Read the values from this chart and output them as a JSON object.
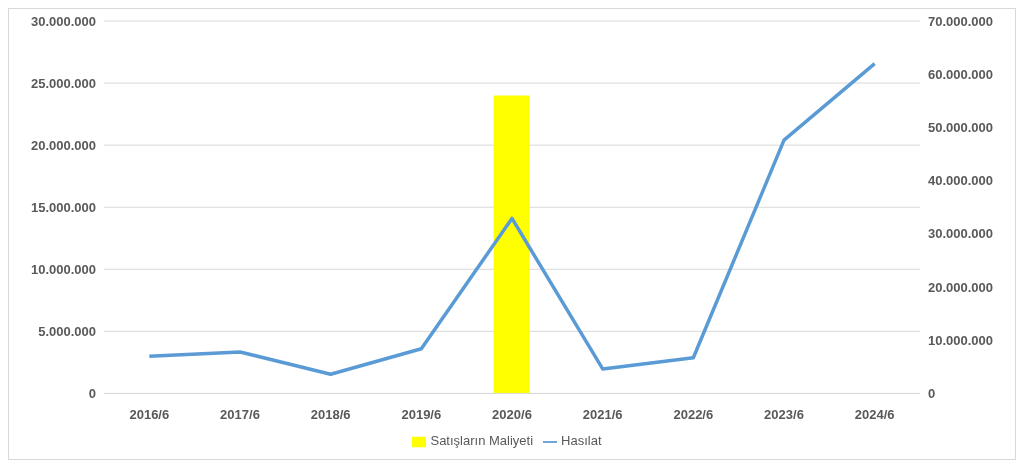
{
  "chart_data": {
    "type": "bar",
    "categories": [
      "2016/6",
      "2017/6",
      "2018/6",
      "2019/6",
      "2020/6",
      "2021/6",
      "2022/6",
      "2023/6",
      "2024/6"
    ],
    "series": [
      {
        "name": "Satışların Maliyeti",
        "color": "#ffff00",
        "values": [
          null,
          null,
          null,
          null,
          24000000,
          null,
          null,
          null,
          null
        ]
      },
      {
        "name": "Hasılat",
        "type": "line",
        "axis": "y2",
        "color": "#5b9bd5",
        "values": [
          7000000,
          7800000,
          3600000,
          8400000,
          32900000,
          4600000,
          6700000,
          47600000,
          62000000
        ]
      }
    ],
    "ylim": [
      0,
      30000000
    ],
    "yticks": [
      {
        "value": 0,
        "label": "0"
      },
      {
        "value": 5000000,
        "label": "5.000.000"
      },
      {
        "value": 10000000,
        "label": "10.000.000"
      },
      {
        "value": 15000000,
        "label": "15.000.000"
      },
      {
        "value": 20000000,
        "label": "20.000.000"
      },
      {
        "value": 25000000,
        "label": "25.000.000"
      },
      {
        "value": 30000000,
        "label": "30.000.000"
      }
    ],
    "y2lim": [
      0,
      70000000
    ],
    "y2ticks": [
      {
        "value": 0,
        "label": "0"
      },
      {
        "value": 10000000,
        "label": "10.000.000"
      },
      {
        "value": 20000000,
        "label": "20.000.000"
      },
      {
        "value": 30000000,
        "label": "30.000.000"
      },
      {
        "value": 40000000,
        "label": "40.000.000"
      },
      {
        "value": 50000000,
        "label": "50.000.000"
      },
      {
        "value": 60000000,
        "label": "60.000.000"
      },
      {
        "value": 70000000,
        "label": "70.000.000"
      }
    ],
    "grid": "y",
    "legend": "bottom",
    "marker": "none",
    "line_style": "solid"
  }
}
